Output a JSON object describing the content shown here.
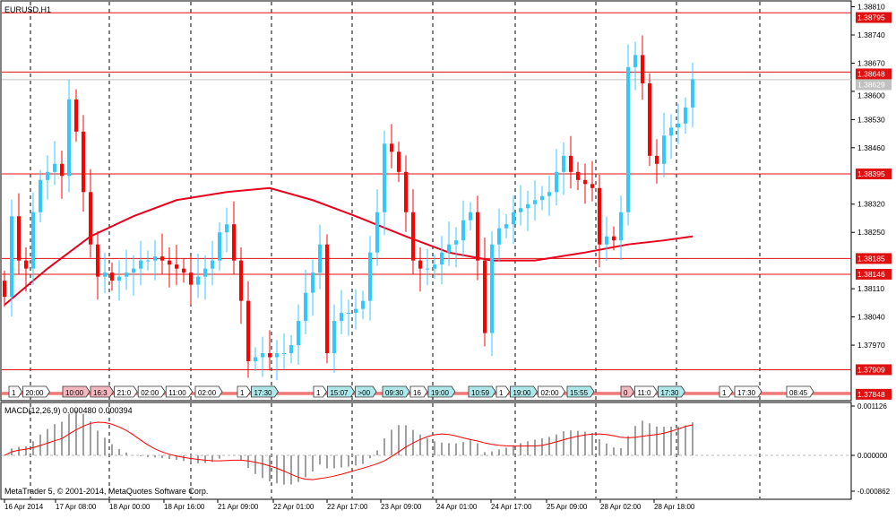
{
  "window": {
    "symbol_title": "EURUSD,H1",
    "copyright": "MetaTrader 5, © 2001-2014, MetaQuotes Software Corp."
  },
  "colors": {
    "bull": "#33c8ff",
    "bear": "#ff0000",
    "ma": "#e8001c",
    "level": "#e01010",
    "bid": "#c0c0c0",
    "grid": "#000000",
    "macd_hist": "#a0a0a0",
    "macd_signal": "#ff0000"
  },
  "chart_data": {
    "type": "candlestick",
    "title": "EURUSD,H1",
    "ylim": [
      1.37848,
      1.3881
    ],
    "y_ticks": [
      "1.38810",
      "1.38740",
      "1.38670",
      "1.38600",
      "1.38530",
      "1.38460",
      "1.38320",
      "1.38250",
      "1.38110",
      "1.38040",
      "1.37970"
    ],
    "x_ticks": [
      "16 Apr 2014",
      "17 Apr 08:00",
      "18 Apr 00:00",
      "18 Apr 16:00",
      "21 Apr 09:00",
      "22 Apr 01:00",
      "22 Apr 17:00",
      "23 Apr 09:00",
      "24 Apr 01:00",
      "24 Apr 17:00",
      "25 Apr 09:00",
      "28 Apr 02:00",
      "28 Apr 18:00"
    ],
    "closes": [
      1.3809,
      1.3829,
      1.3818,
      1.3816,
      1.383,
      1.3838,
      1.384,
      1.3842,
      1.3839,
      1.3858,
      1.385,
      1.3835,
      1.3822,
      1.3814,
      1.3815,
      1.3813,
      1.3814,
      1.3815,
      1.3816,
      1.3818,
      1.3818,
      1.3819,
      1.3818,
      1.3817,
      1.3816,
      1.3815,
      1.3812,
      1.3814,
      1.3816,
      1.3818,
      1.3825,
      1.3827,
      1.3818,
      1.3808,
      1.3793,
      1.3794,
      1.3795,
      1.3794,
      1.3795,
      1.3795,
      1.3797,
      1.3803,
      1.381,
      1.3815,
      1.3822,
      1.3795,
      1.3803,
      1.3805,
      1.3805,
      1.3806,
      1.3808,
      1.382,
      1.383,
      1.3847,
      1.3845,
      1.384,
      1.383,
      1.3818,
      1.3816,
      1.3816,
      1.3817,
      1.382,
      1.3822,
      1.3823,
      1.3828,
      1.383,
      1.3818,
      1.38,
      1.3822,
      1.3826,
      1.3827,
      1.383,
      1.3831,
      1.3832,
      1.3833,
      1.3834,
      1.3835,
      1.384,
      1.3844,
      1.384,
      1.3838,
      1.3837,
      1.3836,
      1.3822,
      1.3824,
      1.3823,
      1.383,
      1.3866,
      1.3869,
      1.3862,
      1.3844,
      1.3842,
      1.3849,
      1.3851,
      1.3852,
      1.3856,
      1.3863
    ],
    "moving_average": [
      [
        0,
        1.3807
      ],
      [
        6,
        1.3816
      ],
      [
        12,
        1.3824
      ],
      [
        18,
        1.3829
      ],
      [
        24,
        1.3833
      ],
      [
        31,
        1.3835
      ],
      [
        37,
        1.3836
      ],
      [
        43,
        1.3833
      ],
      [
        49,
        1.3829
      ],
      [
        56,
        1.3824
      ],
      [
        62,
        1.382
      ],
      [
        68,
        1.3818
      ],
      [
        74,
        1.3818
      ],
      [
        81,
        1.382
      ],
      [
        87,
        1.3822
      ],
      [
        92,
        1.3823
      ],
      [
        96,
        1.3824
      ]
    ],
    "price_levels": [
      {
        "label": "1.38795",
        "value": 1.38795
      },
      {
        "label": "1.38648",
        "value": 1.38648
      },
      {
        "label": "1.38395",
        "value": 1.38395
      },
      {
        "label": "1.38185",
        "value": 1.38185
      },
      {
        "label": "1.38146",
        "value": 1.38146
      },
      {
        "label": "1.37909",
        "value": 1.37909
      },
      {
        "label": "1.37848",
        "value": 1.37848
      }
    ],
    "bid": {
      "label": "1.38629",
      "value": 1.38629
    },
    "macd": {
      "label": "MACD(12,26,9) 0.000480 0.000394",
      "ticks": [
        "0.001126",
        "0.000000",
        "-0.000862"
      ],
      "ylim": [
        -0.000862,
        0.001126
      ]
    },
    "events": [
      {
        "t": "1",
        "k": "w"
      },
      {
        "t": "20:00",
        "k": "w"
      },
      {
        "t": "10:00",
        "k": "p"
      },
      {
        "t": "16:3",
        "k": "p"
      },
      {
        "t": "21:0",
        "k": "w"
      },
      {
        "t": "02:00",
        "k": "w"
      },
      {
        "t": "11:00",
        "k": "w"
      },
      {
        "t": "02:00",
        "k": "w"
      },
      {
        "t": "1",
        "k": "w"
      },
      {
        "t": "17:30",
        "k": "c"
      },
      {
        "t": "1",
        "k": "w"
      },
      {
        "t": "15:07",
        "k": "c"
      },
      {
        "t": ">00",
        "k": "c"
      },
      {
        "t": "09:30",
        "k": "c"
      },
      {
        "t": "16",
        "k": "w"
      },
      {
        "t": "19:00",
        "k": "c"
      },
      {
        "t": "10:59",
        "k": "c"
      },
      {
        "t": "1",
        "k": "w"
      },
      {
        "t": "19:00",
        "k": "c"
      },
      {
        "t": "02:00",
        "k": "w"
      },
      {
        "t": "15:55",
        "k": "c"
      },
      {
        "t": "0",
        "k": "p"
      },
      {
        "t": "11:0",
        "k": "w"
      },
      {
        "t": "17:30",
        "k": "c"
      },
      {
        "t": "1",
        "k": "w"
      },
      {
        "t": "17:30",
        "k": "w"
      },
      {
        "t": "08:45",
        "k": "w"
      }
    ]
  }
}
